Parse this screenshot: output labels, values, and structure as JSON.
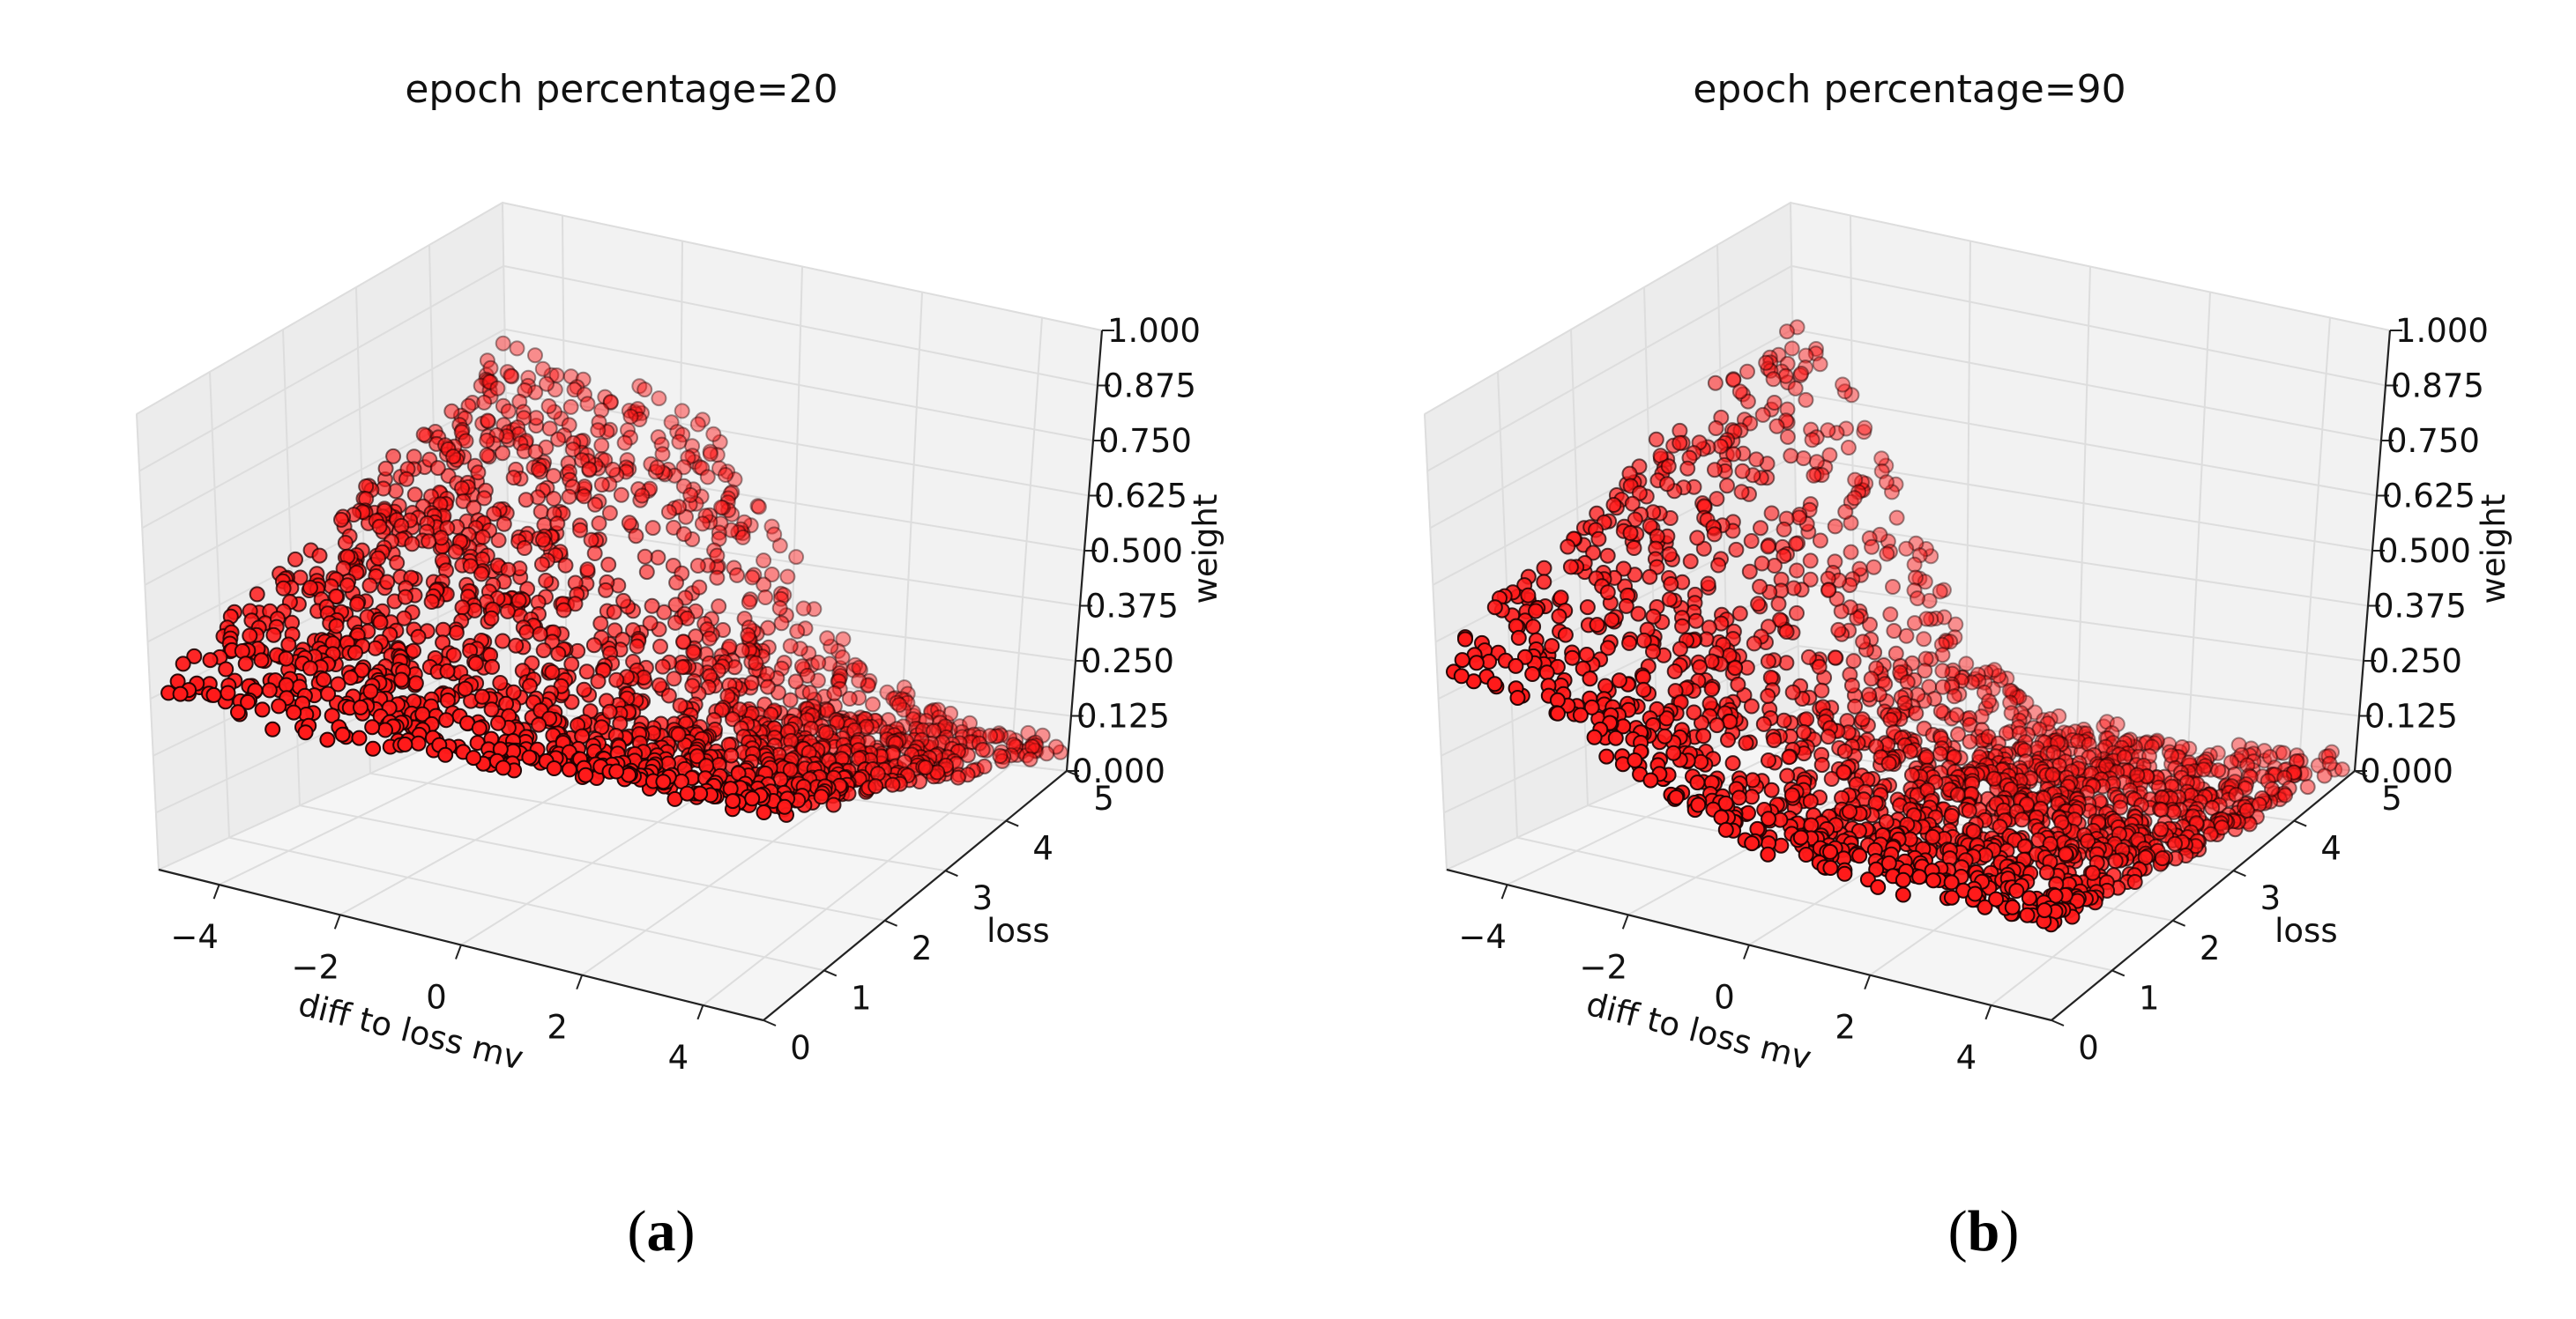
{
  "chart_data": [
    {
      "type": "scatter",
      "title": "epoch percentage=20",
      "xlabel": "diff to loss mv",
      "ylabel": "loss",
      "zlabel": "weight",
      "xlim": [
        -5,
        5
      ],
      "ylim": [
        0,
        5
      ],
      "zlim": [
        0,
        1
      ],
      "x_ticks": [
        "−4",
        "−2",
        "0",
        "2",
        "4"
      ],
      "y_ticks": [
        "0",
        "1",
        "2",
        "3",
        "4",
        "5"
      ],
      "z_ticks": [
        "0.000",
        "0.125",
        "0.250",
        "0.375",
        "0.500",
        "0.625",
        "0.750",
        "0.875",
        "1.000"
      ],
      "series": [
        {
          "name": "weight",
          "color": "#ff1a1a",
          "edge_color": "#1a0000",
          "approx_points": 2000,
          "peak_x": 0.0,
          "peak_weight": 0.72,
          "min_weight": 0.08
        }
      ],
      "caption": "(a)"
    },
    {
      "type": "scatter",
      "title": "epoch percentage=90",
      "xlabel": "diff to loss mv",
      "ylabel": "loss",
      "zlabel": "weight",
      "xlim": [
        -5,
        5
      ],
      "ylim": [
        0,
        5
      ],
      "zlim": [
        0,
        1
      ],
      "x_ticks": [
        "−4",
        "−2",
        "0",
        "2",
        "4"
      ],
      "y_ticks": [
        "0",
        "1",
        "2",
        "3",
        "4",
        "5"
      ],
      "z_ticks": [
        "0.000",
        "0.125",
        "0.250",
        "0.375",
        "0.500",
        "0.625",
        "0.750",
        "0.875",
        "1.000"
      ],
      "series": [
        {
          "name": "weight",
          "color": "#ff1a1a",
          "edge_color": "#1a0000",
          "approx_points": 2000,
          "peak_x": -4.0,
          "peak_weight": 0.85,
          "min_weight": 0.02
        }
      ],
      "caption": "(b)"
    }
  ],
  "captions": {
    "a": {
      "open": "(",
      "letter": "a",
      "close": ")"
    },
    "b": {
      "open": "(",
      "letter": "b",
      "close": ")"
    }
  }
}
